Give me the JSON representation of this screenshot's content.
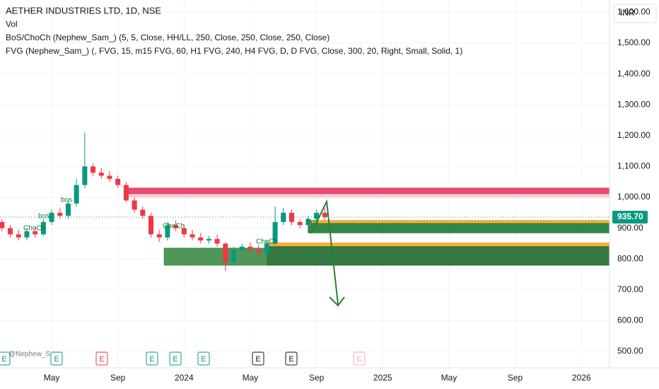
{
  "chart_data": {
    "type": "candlestick",
    "title": "AETHER INDUSTRIES LTD, 1D, NSE",
    "indicators": [
      "Vol",
      "BoS/ChoCh (Nephew_Sam_) (5, 5, Close, HH/LL, 250, Close, 250, Close, 250, Close)",
      "FVG (Nephew_Sam_) (, FVG, 15, m15 FVG, 60, H1 FVG, 240, H4 FVG, D, D FVG, Close, 300, 20, Right, Small, Solid, 1)"
    ],
    "currency": "INR",
    "x": [
      1.0,
      1.5,
      2.0,
      2.5,
      3.0,
      3.5,
      4.0,
      4.5,
      5.0,
      5.5,
      6.0,
      6.5,
      7.0,
      7.5,
      8.0,
      8.5,
      9.0,
      9.5,
      10.0,
      10.5,
      11.0,
      11.5,
      12.0,
      12.5,
      13.0,
      13.5,
      14.0,
      14.5,
      15.0,
      15.5,
      16.0,
      16.5,
      17.0,
      17.5,
      18.0,
      18.5,
      19.0,
      19.5,
      20.0,
      20.5
    ],
    "open": [
      920,
      900,
      880,
      870,
      890,
      880,
      920,
      950,
      940,
      980,
      1040,
      1100,
      1080,
      1070,
      1060,
      1040,
      990,
      960,
      940,
      880,
      870,
      910,
      900,
      880,
      870,
      860,
      865,
      850,
      790,
      830,
      840,
      830,
      820,
      850,
      920,
      950,
      920,
      910,
      930,
      950
    ],
    "high": [
      930,
      910,
      895,
      900,
      905,
      930,
      960,
      965,
      990,
      1060,
      1210,
      1110,
      1095,
      1085,
      1070,
      1050,
      1000,
      970,
      950,
      895,
      920,
      925,
      910,
      895,
      885,
      875,
      880,
      855,
      840,
      850,
      855,
      845,
      860,
      970,
      965,
      960,
      930,
      940,
      960,
      965
    ],
    "low": [
      890,
      870,
      860,
      860,
      870,
      875,
      910,
      930,
      930,
      970,
      1030,
      1070,
      1060,
      1050,
      1030,
      985,
      950,
      930,
      870,
      855,
      860,
      890,
      870,
      860,
      850,
      850,
      840,
      760,
      785,
      820,
      820,
      810,
      815,
      845,
      910,
      910,
      900,
      900,
      920,
      925
    ],
    "close": [
      900,
      880,
      870,
      890,
      880,
      920,
      950,
      940,
      980,
      1040,
      1100,
      1080,
      1070,
      1060,
      1040,
      990,
      960,
      940,
      880,
      870,
      910,
      900,
      880,
      870,
      860,
      865,
      850,
      790,
      830,
      840,
      830,
      820,
      850,
      920,
      950,
      920,
      910,
      930,
      950,
      935.7
    ],
    "last_price": {
      "value": 935.7,
      "label": "935.70"
    },
    "colors": {
      "up": "#089981",
      "down": "#f23645"
    },
    "zones": [
      {
        "low": 1000,
        "high": 1012,
        "start": 8.5,
        "color": "#f8c9d2"
      },
      {
        "low": 1012,
        "high": 1030,
        "start": 8.5,
        "color": "#e23a63"
      },
      {
        "low": 915,
        "high": 925,
        "start": 19.5,
        "color": "#f5a623"
      },
      {
        "low": 885,
        "high": 915,
        "start": 19.5,
        "color": "#1e7a34"
      },
      {
        "low": 840,
        "high": 852,
        "start": 17.0,
        "color": "#f5a623"
      },
      {
        "low": 780,
        "high": 840,
        "start": 17.0,
        "color": "#1e6b2e"
      },
      {
        "low": 780,
        "high": 835,
        "start": 10.8,
        "end": 17.0,
        "color": "#3d8b47"
      }
    ],
    "annotations": [
      "ChoCh",
      "bos",
      "bos",
      "ChoCh",
      "ChoCh",
      "bos"
    ],
    "events": [
      "E",
      "E",
      "E",
      "E",
      "E",
      "E",
      "E",
      "E",
      "E"
    ],
    "watermark": "@Nephew_S",
    "xlim": [
      0.88,
      37.7
    ],
    "xticks": [
      {
        "value": 4,
        "label": "May"
      },
      {
        "value": 8,
        "label": "Sep"
      },
      {
        "value": 12,
        "label": "2024"
      },
      {
        "value": 16,
        "label": "May"
      },
      {
        "value": 20,
        "label": "Sep"
      },
      {
        "value": 24,
        "label": "2025"
      },
      {
        "value": 28,
        "label": "May"
      },
      {
        "value": 32,
        "label": "Sep"
      },
      {
        "value": 36,
        "label": "2026"
      }
    ],
    "ylim": [
      447.2,
      1640
    ],
    "yticks": [
      {
        "value": 500,
        "label": "500.00"
      },
      {
        "value": 600,
        "label": "600.00"
      },
      {
        "value": 700,
        "label": "700.00"
      },
      {
        "value": 800,
        "label": "800.00"
      },
      {
        "value": 900,
        "label": "900.00"
      },
      {
        "value": 1000,
        "label": "1,000.00"
      },
      {
        "value": 1100,
        "label": "1,100.00"
      },
      {
        "value": 1200,
        "label": "1,200.00"
      },
      {
        "value": 1300,
        "label": "1,300.00"
      },
      {
        "value": 1400,
        "label": "1,400.00"
      },
      {
        "value": 1500,
        "label": "1,500.00"
      },
      {
        "value": 1600,
        "label": "1,600.00"
      }
    ],
    "grid": true
  }
}
